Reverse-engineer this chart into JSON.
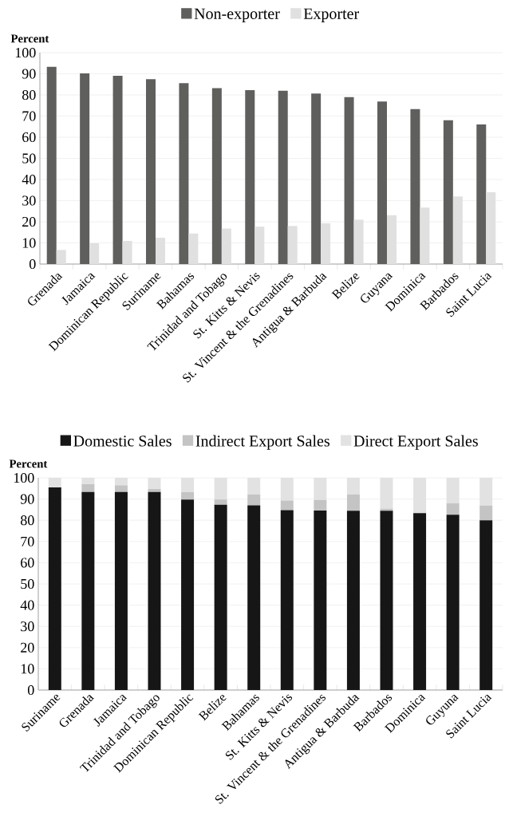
{
  "chart_data": [
    {
      "type": "bar",
      "ylabel": "Percent",
      "categories": [
        "Grenada",
        "Jamaica",
        "Dominican Republic",
        "Suriname",
        "Bahamas",
        "Trinidad and Tobago",
        "St. Kitts & Nevis",
        "St. Vincent & the Grenadines",
        "Antigua & Barbuda",
        "Belize",
        "Guyana",
        "Dominica",
        "Barbados",
        "Saint Lucia"
      ],
      "series": [
        {
          "name": "Non-exporter",
          "color": "#5f5f5d",
          "values": [
            93.3,
            90.2,
            89.1,
            87.5,
            85.6,
            83.2,
            82.3,
            82.0,
            80.7,
            79.0,
            76.9,
            73.3,
            68.0,
            66.0
          ]
        },
        {
          "name": "Exporter",
          "color": "#e0e0e0",
          "values": [
            6.7,
            9.8,
            10.9,
            12.5,
            14.4,
            16.8,
            17.7,
            18.0,
            19.3,
            21.0,
            23.1,
            26.7,
            32.0,
            34.0
          ]
        }
      ],
      "ylim": [
        0,
        100
      ],
      "yticks": [
        0,
        10,
        20,
        30,
        40,
        50,
        60,
        70,
        80,
        90,
        100
      ],
      "grid": "y",
      "legend": "top"
    },
    {
      "type": "bar",
      "stacked": true,
      "ylabel": "Percent",
      "categories": [
        "Suriname",
        "Grenada",
        "Jamaica",
        "Trinidad and Tobago",
        "Dominican Republic",
        "Belize",
        "Bahamas",
        "St. Kitts & Nevis",
        "St. Vincent & the Grenadines",
        "Antigua & Barbuda",
        "Barbados",
        "Dominica",
        "Guyuna",
        "Saint Lucia"
      ],
      "series": [
        {
          "name": "Domestic Sales",
          "color": "#161616",
          "values": [
            95.5,
            93.3,
            93.3,
            93.3,
            89.8,
            87.3,
            87.0,
            84.8,
            84.6,
            84.5,
            84.5,
            83.4,
            82.6,
            80.0
          ]
        },
        {
          "name": "Indirect Export Sales",
          "color": "#c4c4c4",
          "values": [
            null,
            3.7,
            3.2,
            1.5,
            3.5,
            2.5,
            5.2,
            4.5,
            5.0,
            7.7,
            1.0,
            null,
            5.4,
            7.0
          ]
        },
        {
          "name": "Direct Export Sales",
          "color": "#e2e2e2",
          "values": [
            4.5,
            3.0,
            3.5,
            5.2,
            6.7,
            10.2,
            7.8,
            10.7,
            10.4,
            7.8,
            14.5,
            16.6,
            12.0,
            13.0
          ]
        }
      ],
      "ylim": [
        0,
        100
      ],
      "yticks": [
        0,
        10,
        20,
        30,
        40,
        50,
        60,
        70,
        80,
        90,
        100
      ],
      "grid": "y",
      "legend": "top"
    }
  ]
}
